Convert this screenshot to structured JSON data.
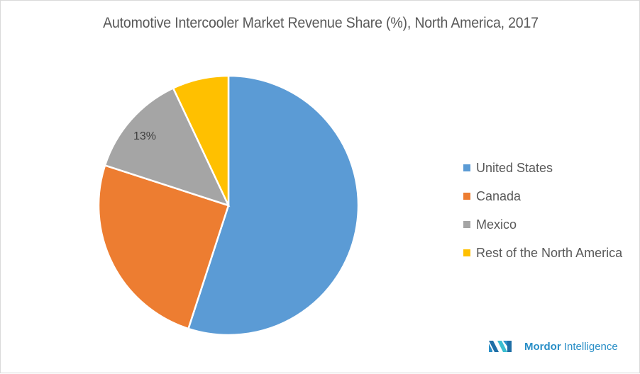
{
  "chart_data": {
    "type": "pie",
    "title": "Automotive Intercooler Market Revenue Share (%), North America, 2017",
    "categories": [
      "United States",
      "Canada",
      "Mexico",
      "Rest of the North America"
    ],
    "values": [
      55,
      25,
      13,
      7
    ],
    "colors": [
      "#5b9bd5",
      "#ed7d31",
      "#a5a5a5",
      "#ffc000"
    ],
    "data_labels": [
      null,
      null,
      "13%",
      null
    ],
    "legend_position": "right",
    "start_angle": 0,
    "direction": "clockwise"
  },
  "legend": {
    "items": [
      {
        "label": "United States",
        "color": "#5b9bd5"
      },
      {
        "label": "Canada",
        "color": "#ed7d31"
      },
      {
        "label": "Mexico",
        "color": "#a5a5a5"
      },
      {
        "label": "Rest of the North America",
        "color": "#ffc000"
      }
    ]
  },
  "logo": {
    "brand_bold": "Mordor",
    "brand_rest": " Intelligence"
  }
}
